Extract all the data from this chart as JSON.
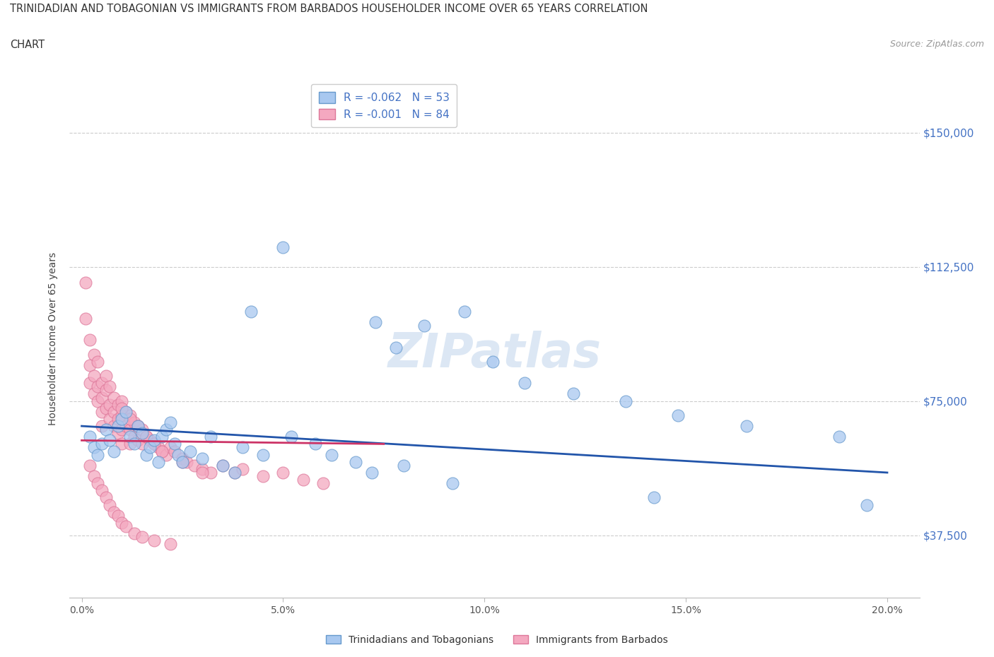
{
  "title_line1": "TRINIDADIAN AND TOBAGONIAN VS IMMIGRANTS FROM BARBADOS HOUSEHOLDER INCOME OVER 65 YEARS CORRELATION",
  "title_line2": "CHART",
  "source": "Source: ZipAtlas.com",
  "ylabel": "Householder Income Over 65 years",
  "xlabel_ticks": [
    "0.0%",
    "5.0%",
    "10.0%",
    "15.0%",
    "20.0%"
  ],
  "xlabel_vals": [
    0.0,
    5.0,
    10.0,
    15.0,
    20.0
  ],
  "yticks_vals": [
    37500,
    75000,
    112500,
    150000
  ],
  "yticks_labels": [
    "$37,500",
    "$75,000",
    "$112,500",
    "$150,000"
  ],
  "r_blue": -0.062,
  "n_blue": 53,
  "r_pink": -0.001,
  "n_pink": 84,
  "blue_color": "#A8C8F0",
  "pink_color": "#F4A8C0",
  "blue_edge_color": "#6699CC",
  "pink_edge_color": "#DD7799",
  "blue_line_color": "#2255AA",
  "pink_line_color": "#CC3366",
  "legend_label_blue": "Trinidadians and Tobagonians",
  "legend_label_pink": "Immigrants from Barbados",
  "watermark": "ZIPatlas",
  "blue_scatter_x": [
    4.2,
    5.0,
    7.3,
    7.8,
    8.5,
    9.5,
    10.2,
    11.0,
    12.2,
    13.5,
    14.8,
    16.5,
    18.8,
    0.2,
    0.3,
    0.4,
    0.5,
    0.6,
    0.7,
    0.8,
    0.9,
    1.0,
    1.1,
    1.2,
    1.3,
    1.4,
    1.5,
    1.6,
    1.7,
    1.8,
    1.9,
    2.0,
    2.1,
    2.2,
    2.3,
    2.4,
    2.5,
    2.7,
    3.0,
    3.2,
    3.5,
    3.8,
    4.0,
    4.5,
    5.2,
    5.8,
    6.2,
    6.8,
    7.2,
    8.0,
    9.2,
    14.2,
    19.5
  ],
  "blue_scatter_y": [
    100000,
    118000,
    97000,
    90000,
    96000,
    100000,
    86000,
    80000,
    77000,
    75000,
    71000,
    68000,
    65000,
    65000,
    62000,
    60000,
    63000,
    67000,
    64000,
    61000,
    68000,
    70000,
    72000,
    65000,
    63000,
    68000,
    66000,
    60000,
    62000,
    64000,
    58000,
    65000,
    67000,
    69000,
    63000,
    60000,
    58000,
    61000,
    59000,
    65000,
    57000,
    55000,
    62000,
    60000,
    65000,
    63000,
    60000,
    58000,
    55000,
    57000,
    52000,
    48000,
    46000
  ],
  "pink_scatter_x": [
    0.1,
    0.1,
    0.2,
    0.2,
    0.2,
    0.3,
    0.3,
    0.3,
    0.4,
    0.4,
    0.4,
    0.5,
    0.5,
    0.5,
    0.5,
    0.6,
    0.6,
    0.6,
    0.7,
    0.7,
    0.7,
    0.8,
    0.8,
    0.8,
    0.9,
    0.9,
    0.9,
    1.0,
    1.0,
    1.0,
    1.0,
    1.1,
    1.1,
    1.2,
    1.2,
    1.2,
    1.3,
    1.3,
    1.4,
    1.4,
    1.5,
    1.5,
    1.6,
    1.7,
    1.8,
    1.9,
    2.0,
    2.1,
    2.2,
    2.3,
    2.5,
    2.6,
    2.8,
    3.0,
    3.2,
    3.5,
    3.8,
    4.0,
    4.5,
    5.0,
    5.5,
    6.0,
    1.0,
    1.2,
    1.4,
    1.6,
    1.8,
    2.0,
    2.5,
    3.0,
    0.2,
    0.3,
    0.4,
    0.5,
    0.6,
    0.7,
    0.8,
    0.9,
    1.0,
    1.1,
    1.3,
    1.5,
    1.8,
    2.2
  ],
  "pink_scatter_y": [
    108000,
    98000,
    92000,
    85000,
    80000,
    88000,
    82000,
    77000,
    86000,
    79000,
    75000,
    80000,
    76000,
    72000,
    68000,
    82000,
    78000,
    73000,
    79000,
    74000,
    70000,
    76000,
    72000,
    68000,
    74000,
    70000,
    66000,
    75000,
    71000,
    67000,
    63000,
    72000,
    68000,
    71000,
    67000,
    63000,
    69000,
    65000,
    68000,
    64000,
    67000,
    63000,
    65000,
    64000,
    63000,
    62000,
    61000,
    60000,
    62000,
    61000,
    59000,
    58000,
    57000,
    56000,
    55000,
    57000,
    55000,
    56000,
    54000,
    55000,
    53000,
    52000,
    73000,
    70000,
    68000,
    65000,
    63000,
    61000,
    58000,
    55000,
    57000,
    54000,
    52000,
    50000,
    48000,
    46000,
    44000,
    43000,
    41000,
    40000,
    38000,
    37000,
    36000,
    35000
  ]
}
